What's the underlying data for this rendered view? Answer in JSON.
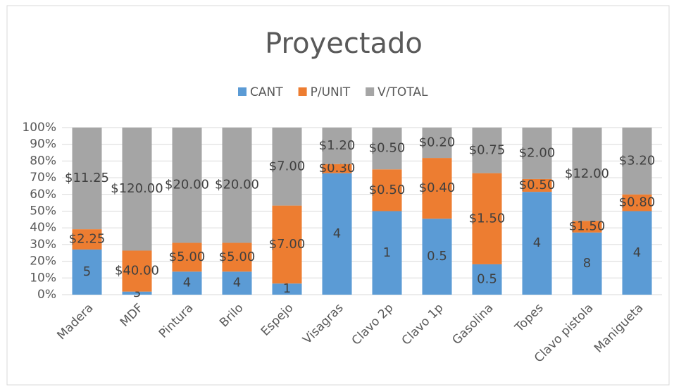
{
  "chart_data": {
    "type": "bar",
    "stacking": "percent",
    "title": "Proyectado",
    "categories": [
      "Madera",
      "MDF",
      "Pintura",
      "Brilo",
      "Espejo",
      "Visagras",
      "Clavo 2p",
      "Clavo 1p",
      "Gasolina",
      "Topes",
      "Clavo pistola",
      "Manigueta"
    ],
    "series": [
      {
        "name": "CANT",
        "color": "#5b9bd5",
        "values": [
          5,
          3,
          4,
          4,
          1,
          4,
          1,
          0.5,
          0.5,
          4,
          8,
          4
        ]
      },
      {
        "name": "P/UNIT",
        "color": "#ed7d31",
        "values": [
          2.25,
          40,
          5,
          5,
          7,
          0.3,
          0.5,
          0.4,
          1.5,
          0.5,
          1.5,
          0.8
        ],
        "value_labels": [
          "$2.25",
          "$40.00",
          "$5.00",
          "$5.00",
          "$7.00",
          "$0.30",
          "$0.50",
          "$0.40",
          "$1.50",
          "$0.50",
          "$1.50",
          "$0.80"
        ]
      },
      {
        "name": "V/TOTAL",
        "color": "#a5a5a5",
        "values": [
          11.25,
          120,
          20,
          20,
          7,
          1.2,
          0.5,
          0.2,
          0.75,
          2,
          12,
          3.2
        ],
        "value_labels": [
          "$11.25",
          "$120.00",
          "$20.00",
          "$20.00",
          "$7.00",
          "$1.20",
          "$0.50",
          "$0.20",
          "$0.75",
          "$2.00",
          "$12.00",
          "$3.20"
        ]
      }
    ],
    "ylim": [
      0,
      100
    ],
    "yticks": [
      {
        "value": 0,
        "label": "0%"
      },
      {
        "value": 10,
        "label": "10%"
      },
      {
        "value": 20,
        "label": "20%"
      },
      {
        "value": 30,
        "label": "30%"
      },
      {
        "value": 40,
        "label": "40%"
      },
      {
        "value": 50,
        "label": "50%"
      },
      {
        "value": 60,
        "label": "60%"
      },
      {
        "value": 70,
        "label": "70%"
      },
      {
        "value": 80,
        "label": "80%"
      },
      {
        "value": 90,
        "label": "90%"
      },
      {
        "value": 100,
        "label": "100%"
      }
    ],
    "grid": true,
    "legend": "top"
  }
}
